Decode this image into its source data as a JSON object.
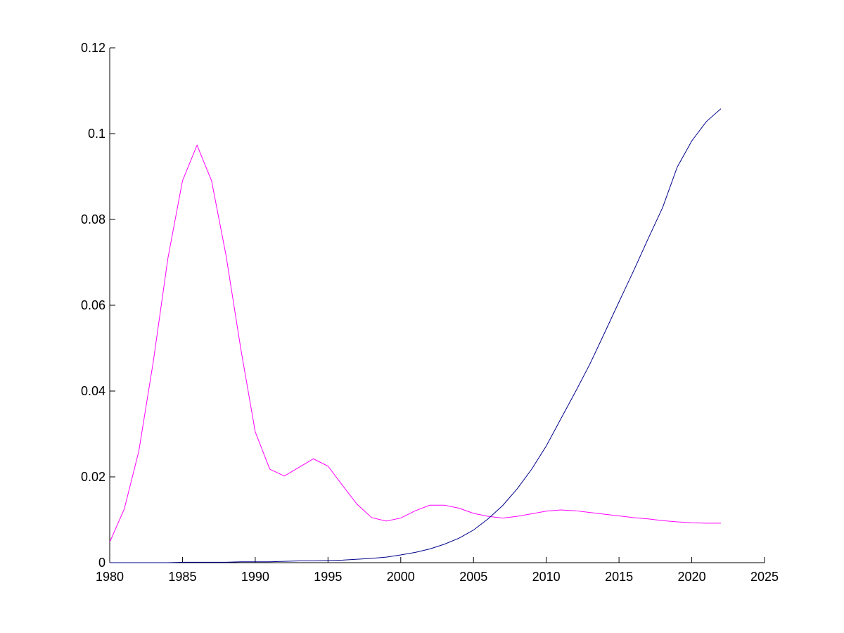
{
  "chart_data": {
    "type": "line",
    "title": "",
    "xlabel": "",
    "ylabel": "",
    "xlim": [
      1980,
      2025
    ],
    "ylim": [
      0,
      0.12
    ],
    "grid": false,
    "x_ticks": [
      1980,
      1985,
      1990,
      1995,
      2000,
      2005,
      2010,
      2015,
      2020,
      2025
    ],
    "y_ticks": [
      0,
      0.02,
      0.04,
      0.06,
      0.08,
      0.1,
      0.12
    ],
    "x_tick_labels": [
      "1980",
      "1985",
      "1990",
      "1995",
      "2000",
      "2005",
      "2010",
      "2015",
      "2020",
      "2025"
    ],
    "y_tick_labels": [
      "0",
      "0.02",
      "0.04",
      "0.06",
      "0.08",
      "0.1",
      "0.12"
    ],
    "x": [
      1980,
      1981,
      1982,
      1983,
      1984,
      1985,
      1986,
      1987,
      1988,
      1989,
      1990,
      1991,
      1992,
      1993,
      1994,
      1995,
      1996,
      1997,
      1998,
      1999,
      2000,
      2001,
      2002,
      2003,
      2004,
      2005,
      2006,
      2007,
      2008,
      2009,
      2010,
      2011,
      2012,
      2013,
      2014,
      2015,
      2016,
      2017,
      2018,
      2019,
      2020,
      2021,
      2022
    ],
    "series": [
      {
        "color": "#ff00ff",
        "values": [
          0.0048,
          0.0125,
          0.026,
          0.047,
          0.071,
          0.089,
          0.0973,
          0.089,
          0.0715,
          0.05,
          0.0305,
          0.0218,
          0.0202,
          0.0222,
          0.0242,
          0.0225,
          0.018,
          0.0136,
          0.0105,
          0.0097,
          0.0104,
          0.0121,
          0.0134,
          0.0134,
          0.0127,
          0.0115,
          0.0108,
          0.0104,
          0.0108,
          0.0114,
          0.012,
          0.0123,
          0.0121,
          0.0117,
          0.0113,
          0.0109,
          0.0105,
          0.0102,
          0.0098,
          0.0095,
          0.0093,
          0.0092,
          0.0092
        ]
      },
      {
        "color": "#00008b",
        "values": [
          0.0,
          0.0,
          0.0,
          0.0,
          0.0,
          0.0001,
          0.0001,
          0.0001,
          0.0001,
          0.0002,
          0.0002,
          0.0002,
          0.0003,
          0.0004,
          0.0004,
          0.0005,
          0.0006,
          0.0008,
          0.001,
          0.0013,
          0.0018,
          0.0024,
          0.0032,
          0.0043,
          0.0057,
          0.0076,
          0.0102,
          0.0133,
          0.0172,
          0.0218,
          0.0272,
          0.0335,
          0.0398,
          0.0463,
          0.0535,
          0.0608,
          0.068,
          0.0755,
          0.0828,
          0.0922,
          0.0983,
          0.1028,
          0.1058
        ]
      }
    ]
  }
}
